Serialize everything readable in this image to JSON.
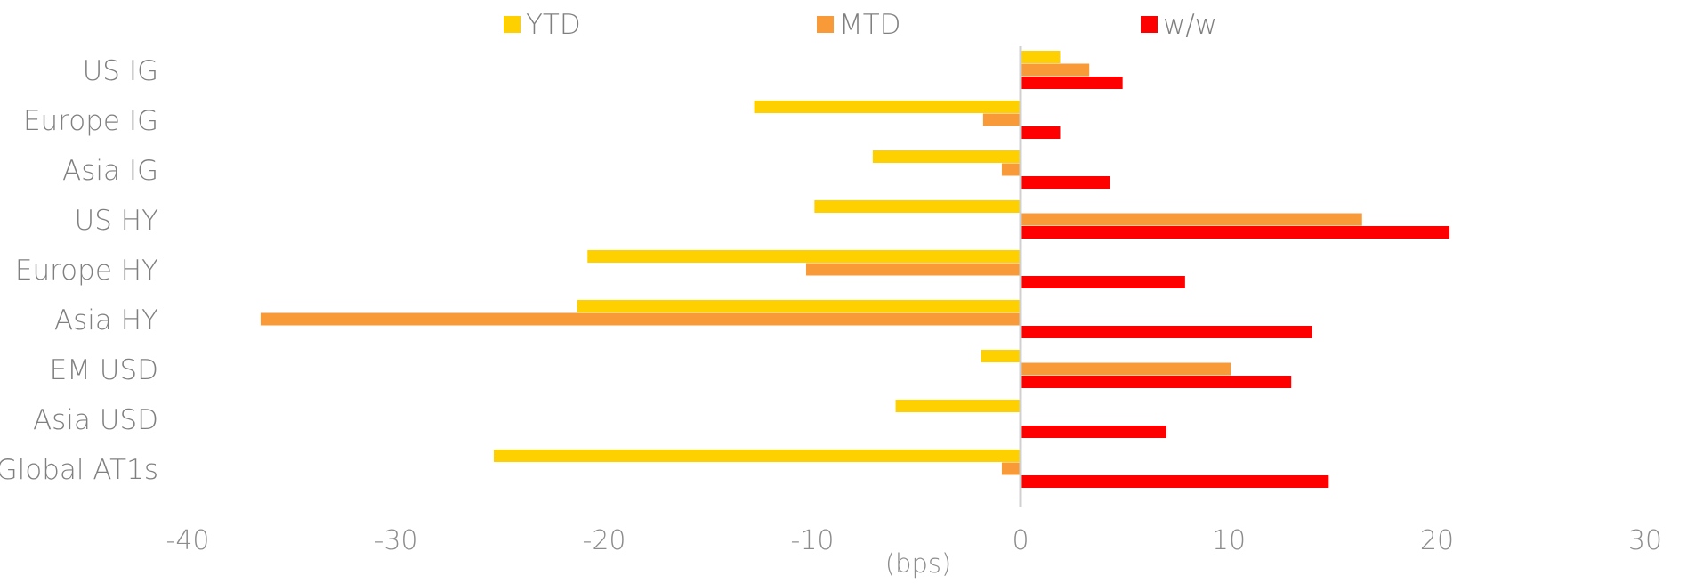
{
  "chart_data": {
    "type": "bar",
    "orientation": "horizontal",
    "categories": [
      "US IG",
      "Europe IG",
      "Asia IG",
      "US HY",
      "Europe HY",
      "Asia HY",
      "EM USD",
      "Asia USD",
      "Global AT1s"
    ],
    "series": [
      {
        "name": "YTD",
        "color": "#FFD000",
        "values": [
          1.9,
          -12.8,
          -7.1,
          -9.9,
          -20.8,
          -21.3,
          -1.9,
          -6.0,
          -25.3
        ]
      },
      {
        "name": "MTD",
        "color": "#F99A38",
        "values": [
          3.3,
          -1.8,
          -0.9,
          16.4,
          -10.3,
          -36.5,
          10.1,
          0.0,
          -0.9
        ]
      },
      {
        "name": "w/w",
        "color": "#FF0000",
        "values": [
          4.9,
          1.9,
          4.3,
          20.6,
          7.9,
          14.0,
          13.0,
          7.0,
          14.8
        ]
      }
    ],
    "xlabel": "(bps)",
    "xlim": [
      -40,
      30
    ],
    "xticks": [
      -40,
      -30,
      -20,
      -10,
      0,
      10,
      20,
      30
    ],
    "xtick_labels": [
      "-40",
      "-30",
      "-20",
      "-10",
      "0",
      "10",
      "20",
      "30"
    ],
    "grid": false,
    "legend_position": "top"
  }
}
